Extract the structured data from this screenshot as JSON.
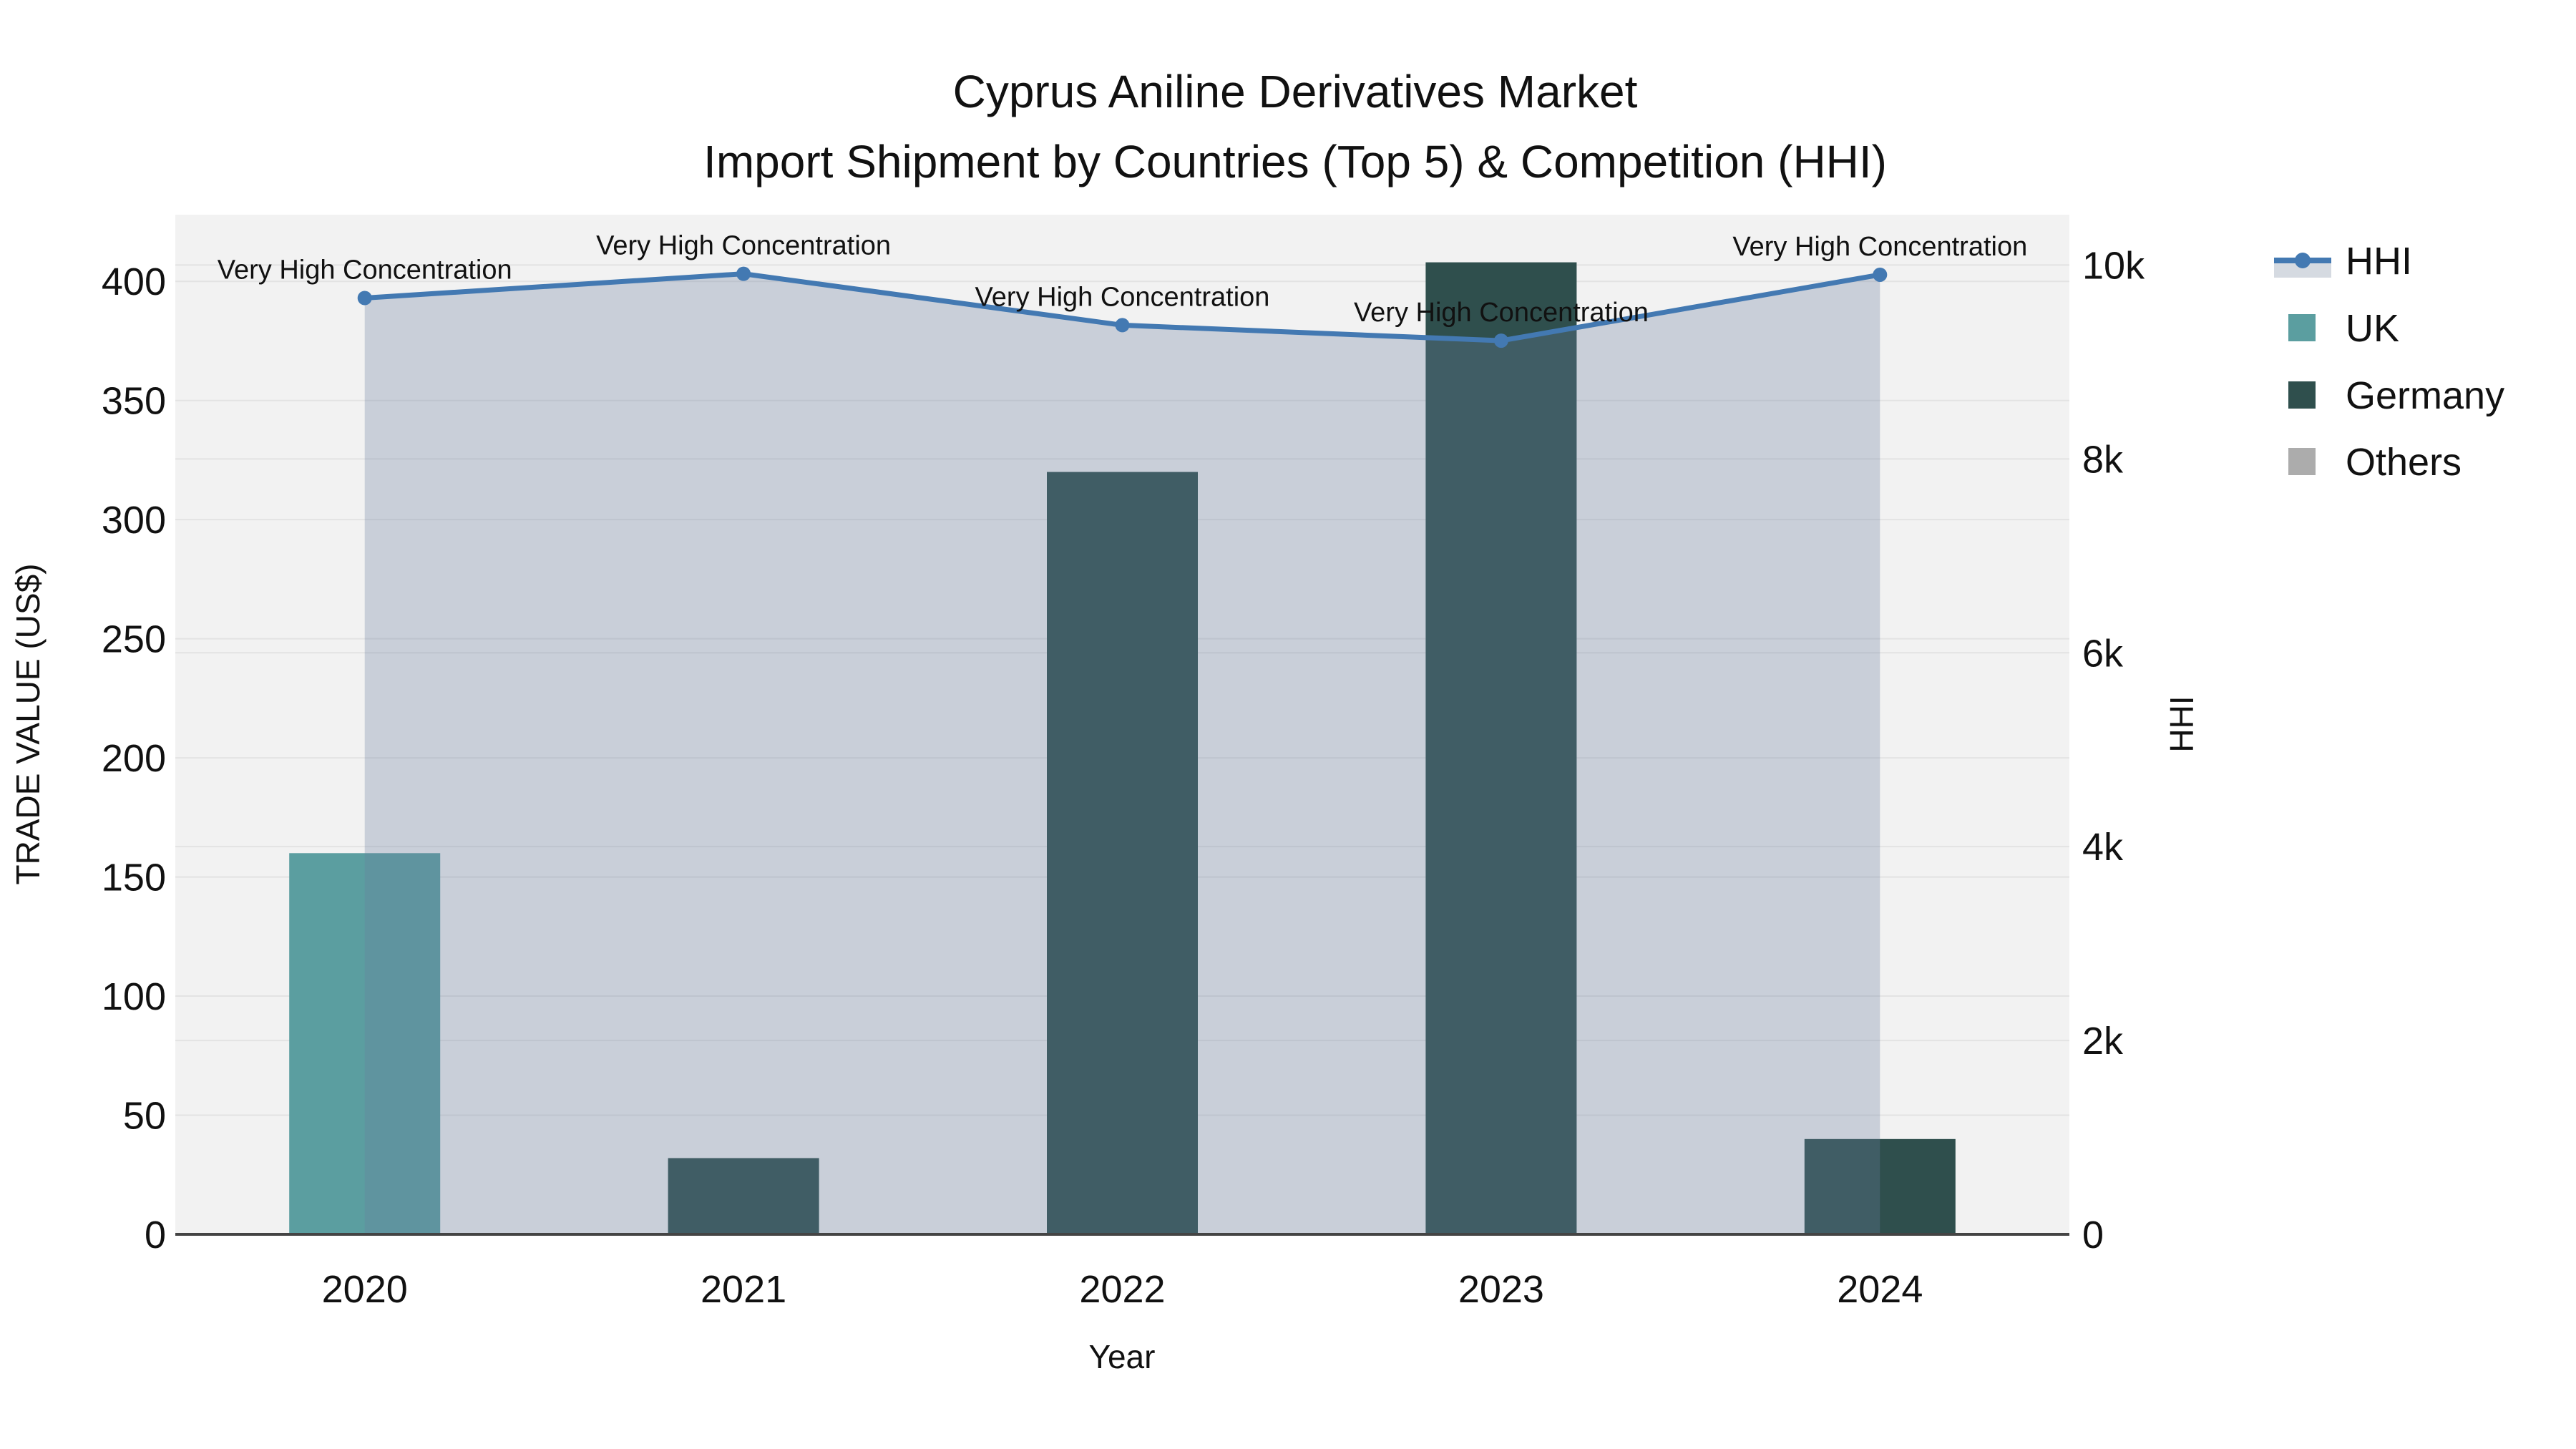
{
  "title": {
    "line1": "Cyprus Aniline Derivatives Market",
    "line2": "Import Shipment by Countries (Top 5) & Competition (HHI)"
  },
  "axes": {
    "left": {
      "title": "TRADE VALUE (US$)",
      "tick_labels": [
        "0",
        "50",
        "100",
        "150",
        "200",
        "250",
        "300",
        "350",
        "400"
      ],
      "tick_values": [
        0,
        50,
        100,
        150,
        200,
        250,
        300,
        350,
        400
      ]
    },
    "right": {
      "title": "HHI",
      "tick_labels": [
        "0",
        "2k",
        "4k",
        "6k",
        "8k",
        "10k"
      ],
      "tick_values": [
        0,
        2000,
        4000,
        6000,
        8000,
        10000
      ]
    },
    "x": {
      "title": "Year"
    }
  },
  "chart_data": {
    "type": "bar+line (dual axis)",
    "categories": [
      "2020",
      "2021",
      "2022",
      "2023",
      "2024"
    ],
    "series": [
      {
        "name": "UK",
        "type": "bar",
        "yaxis": "left",
        "color": "#5B9EA0",
        "values": [
          160,
          0,
          0,
          0,
          0
        ]
      },
      {
        "name": "Germany",
        "type": "bar",
        "yaxis": "left",
        "color": "#2F4F4D",
        "values": [
          0,
          32,
          320,
          408,
          40
        ]
      },
      {
        "name": "Others",
        "type": "bar",
        "yaxis": "left",
        "color": "#ACACAC",
        "values": [
          0,
          0,
          0,
          0,
          0
        ]
      },
      {
        "name": "HHI",
        "type": "line",
        "yaxis": "right",
        "color": "#4379B2",
        "fill": "tozeroy",
        "fill_color": "#6B7FA0",
        "fill_opacity": 0.3,
        "values": [
          9660,
          9910,
          9380,
          9220,
          9900
        ]
      }
    ],
    "annotations": [
      {
        "x": "2020",
        "text": "Very High Concentration"
      },
      {
        "x": "2021",
        "text": "Very High Concentration"
      },
      {
        "x": "2022",
        "text": "Very High Concentration"
      },
      {
        "x": "2023",
        "text": "Very High Concentration"
      },
      {
        "x": "2024",
        "text": "Very High Concentration"
      }
    ],
    "title": "Cyprus Aniline Derivatives Market — Import Shipment by Countries (Top 5) & Competition (HHI)",
    "xlabel": "Year",
    "ylabel_left": "TRADE VALUE (US$)",
    "ylabel_right": "HHI",
    "ylim_left": [
      0,
      428
    ],
    "ylim_right": [
      0,
      10520
    ],
    "grid": true,
    "legend_position": "right"
  },
  "legend": {
    "items": [
      {
        "label": "HHI",
        "type": "line",
        "color": "#4379B2"
      },
      {
        "label": "UK",
        "type": "square",
        "color": "#5B9EA0"
      },
      {
        "label": "Germany",
        "type": "square",
        "color": "#2F4F4D"
      },
      {
        "label": "Others",
        "type": "square",
        "color": "#ACACAC"
      }
    ]
  },
  "colors": {
    "plot_bg": "#F2F2F2",
    "grid": "#E3E3E3",
    "axis_line": "#444444",
    "hhi_line": "#4379B2",
    "hhi_fill": "#6B7FA0",
    "legend_band": "#D5DAE1",
    "text": "#111111"
  }
}
